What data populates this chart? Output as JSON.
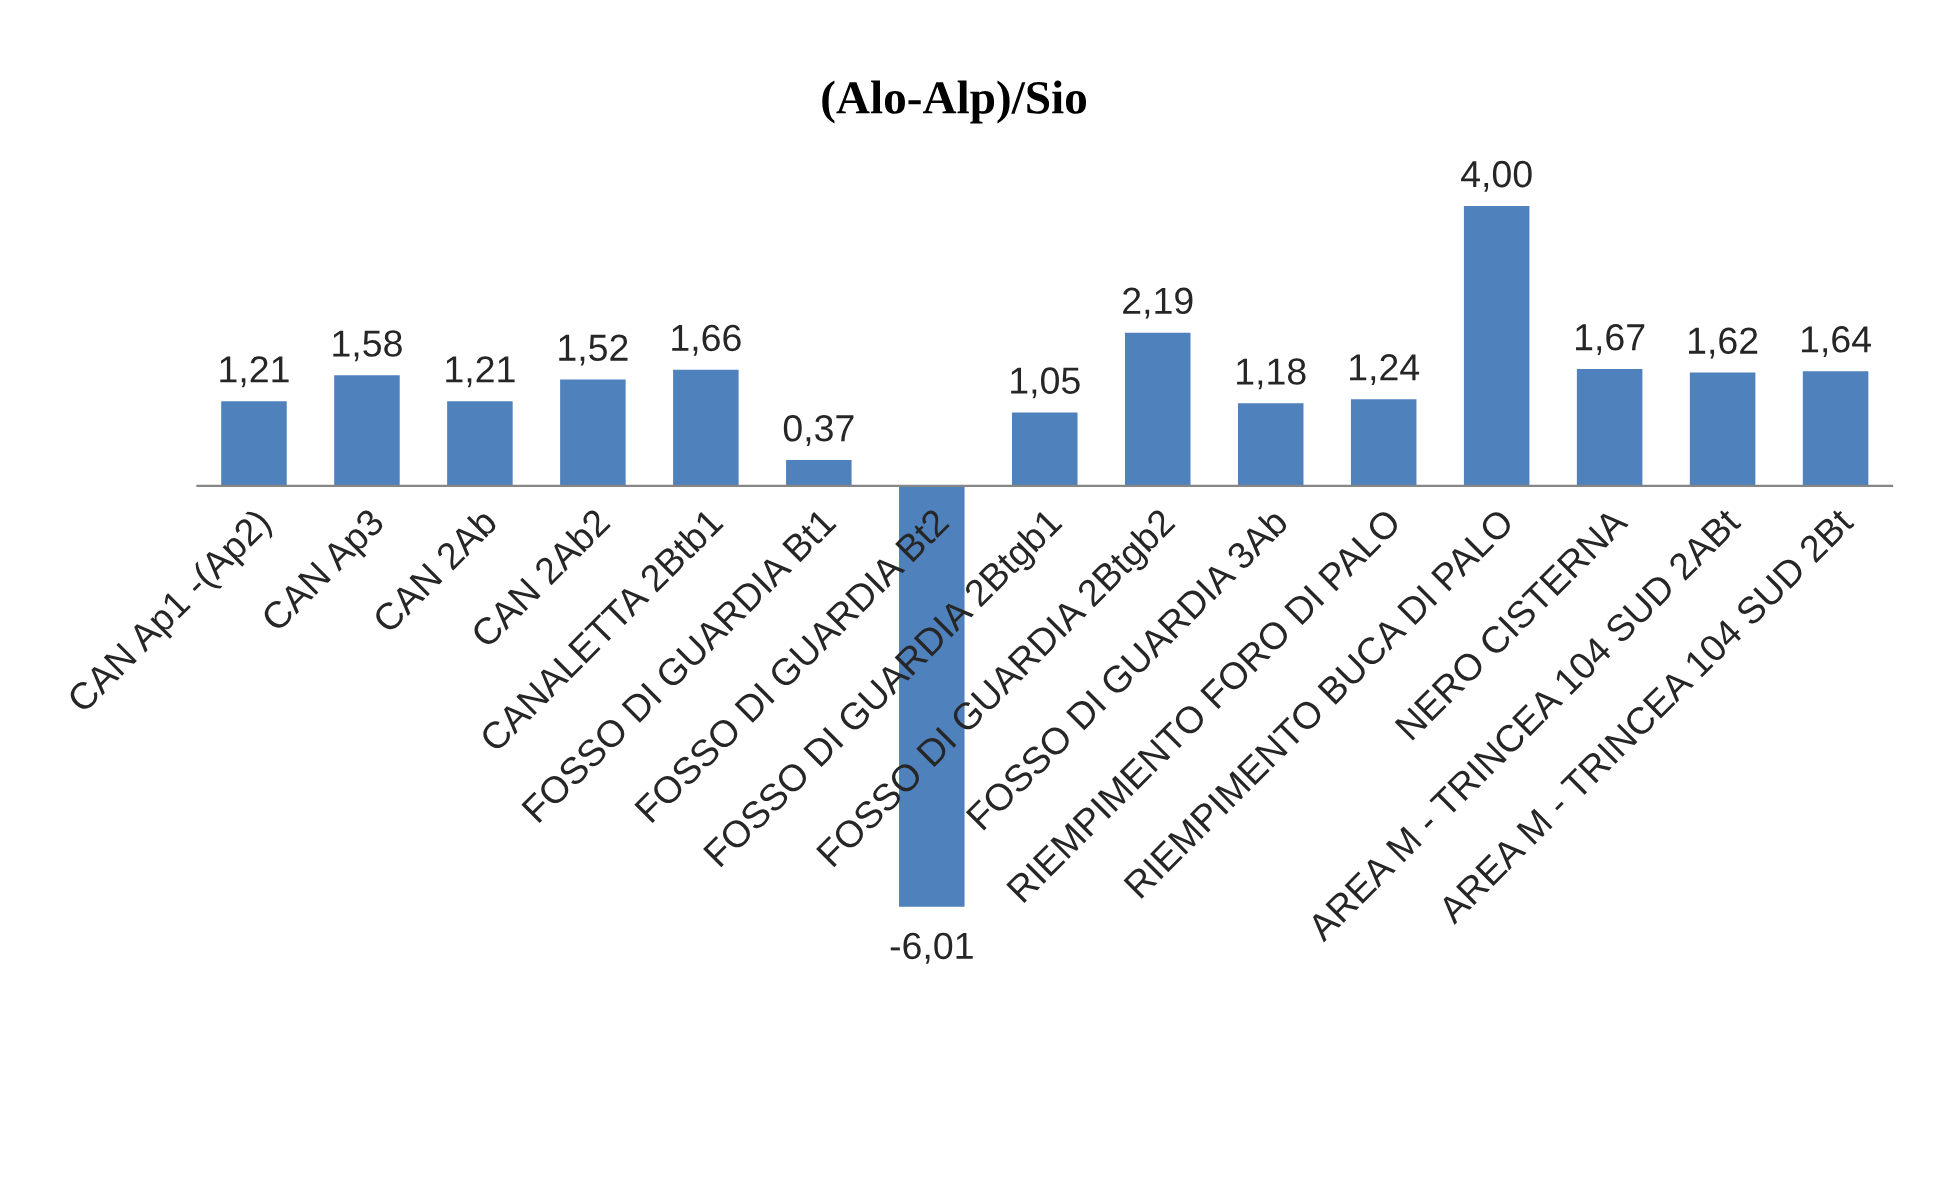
{
  "chart_data": {
    "type": "bar",
    "title": "(Alo-Alp)/Sio",
    "categories": [
      "CAN Ap1 -(Ap2)",
      "CAN Ap3",
      "CAN 2Ab",
      "CAN 2Ab2",
      "CANALETTA 2Btb1",
      "FOSSO DI GUARDIA Bt1",
      "FOSSO DI GUARDIA Bt2",
      "FOSSO DI GUARDIA 2Btgb1",
      "FOSSO DI GUARDIA 2Btgb2",
      "FOSSO DI GUARDIA 3Ab",
      "RIEMPIMENTO FORO DI PALO",
      "RIEMPIMENTO BUCA DI PALO",
      "NERO CISTERNA",
      "AREA M - TRINCEA 104 SUD 2ABt",
      "AREA M - TRINCEA 104 SUD 2Bt"
    ],
    "values": [
      1.21,
      1.58,
      1.21,
      1.52,
      1.66,
      0.37,
      -6.01,
      1.05,
      2.19,
      1.18,
      1.24,
      4.0,
      1.67,
      1.62,
      1.64
    ],
    "value_labels": [
      "1,21",
      "1,58",
      "1,21",
      "1,52",
      "1,66",
      "0,37",
      "-6,01",
      "1,05",
      "2,19",
      "1,18",
      "1,24",
      "4,00",
      "1,67",
      "1,62",
      "1,64"
    ],
    "color": "#4f81bd"
  }
}
